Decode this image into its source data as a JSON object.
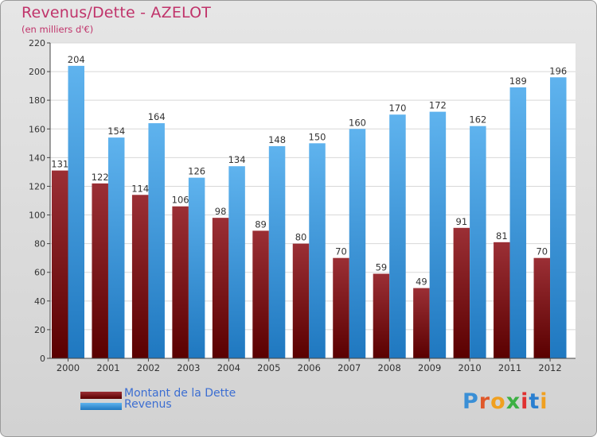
{
  "header": {
    "title": "Revenus/Dette - AZELOT",
    "subtitle": "(en milliers d'€)"
  },
  "legend": {
    "debt_label": "Montant de la Dette",
    "revenue_label": "Revenus"
  },
  "logo": {
    "text": "Proxiti"
  },
  "colors": {
    "debt_top": "#9b2f35",
    "debt_bottom": "#5a0000",
    "revenue_top": "#5fb3ee",
    "revenue_bottom": "#1f78c0",
    "title": "#c0336a",
    "legend_text": "#3c6ed2"
  },
  "chart_data": {
    "type": "bar",
    "title": "Revenus/Dette - AZELOT",
    "ylabel": "(en milliers d'€)",
    "categories": [
      "2000",
      "2001",
      "2002",
      "2003",
      "2004",
      "2005",
      "2006",
      "2007",
      "2008",
      "2009",
      "2010",
      "2011",
      "2012"
    ],
    "series": [
      {
        "name": "Montant de la Dette",
        "values": [
          131,
          122,
          114,
          106,
          98,
          89,
          80,
          70,
          59,
          49,
          91,
          81,
          70
        ]
      },
      {
        "name": "Revenus",
        "values": [
          204,
          154,
          164,
          126,
          134,
          148,
          150,
          160,
          170,
          172,
          162,
          189,
          196
        ]
      }
    ],
    "ylim": [
      0,
      220
    ],
    "yticks": [
      0,
      20,
      40,
      60,
      80,
      100,
      120,
      140,
      160,
      180,
      200,
      220
    ],
    "grid": true,
    "legend_position": "bottom-left"
  }
}
